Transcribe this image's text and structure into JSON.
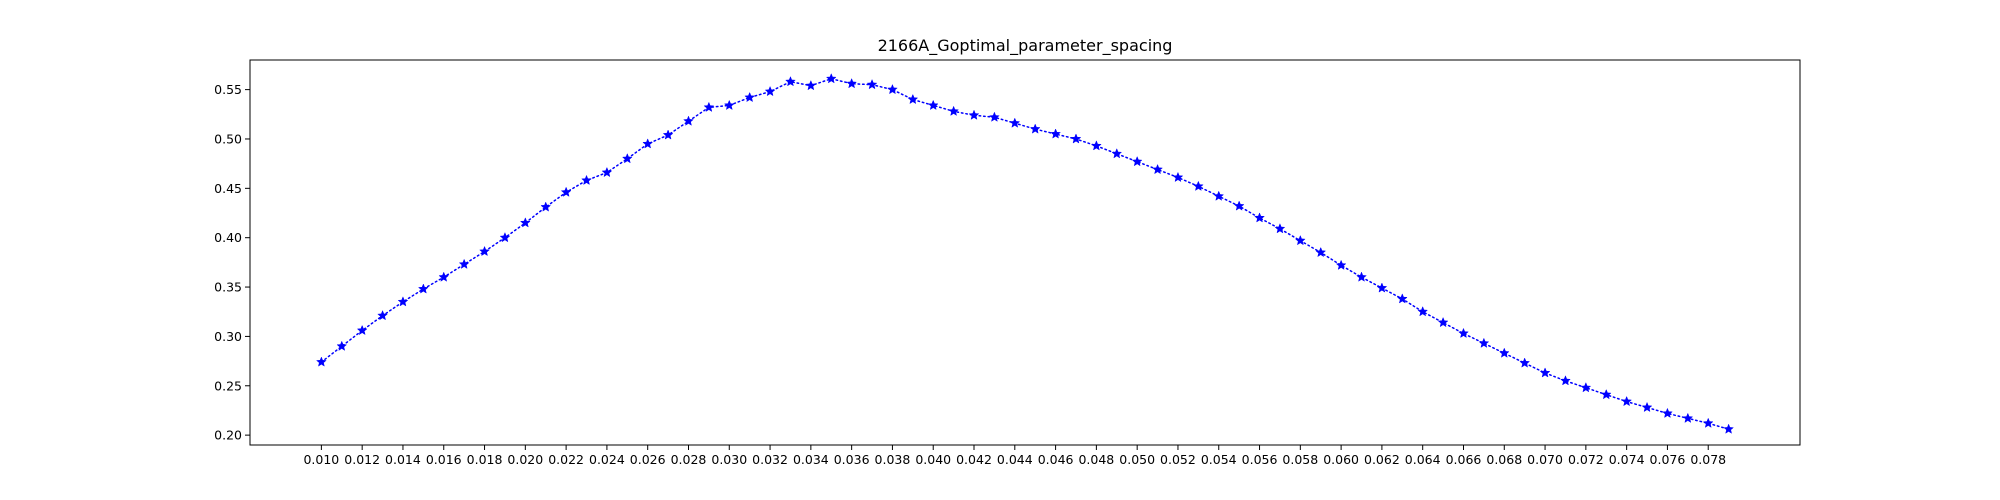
{
  "chart_data": {
    "type": "line",
    "title": "2166A_Goptimal_parameter_spacing",
    "xlabel": "",
    "ylabel": "",
    "xlim": [
      0.0065,
      0.0825
    ],
    "ylim": [
      0.19,
      0.58
    ],
    "grid": false,
    "line_style": "dotted",
    "marker": "star",
    "color": "#0000ff",
    "x_ticks": [
      0.01,
      0.012,
      0.014,
      0.016,
      0.018,
      0.02,
      0.022,
      0.024,
      0.026,
      0.028,
      0.03,
      0.032,
      0.034,
      0.036,
      0.038,
      0.04,
      0.042,
      0.044,
      0.046,
      0.048,
      0.05,
      0.052,
      0.054,
      0.056,
      0.058,
      0.06,
      0.062,
      0.064,
      0.066,
      0.068,
      0.07,
      0.072,
      0.074,
      0.076,
      0.078
    ],
    "x_tick_labels": [
      "0.010",
      "0.012",
      "0.014",
      "0.016",
      "0.018",
      "0.020",
      "0.022",
      "0.024",
      "0.026",
      "0.028",
      "0.030",
      "0.032",
      "0.034",
      "0.036",
      "0.038",
      "0.040",
      "0.042",
      "0.044",
      "0.046",
      "0.048",
      "0.050",
      "0.052",
      "0.054",
      "0.056",
      "0.058",
      "0.060",
      "0.062",
      "0.064",
      "0.066",
      "0.068",
      "0.070",
      "0.072",
      "0.074",
      "0.076",
      "0.078"
    ],
    "y_ticks": [
      0.2,
      0.25,
      0.3,
      0.35,
      0.4,
      0.45,
      0.5,
      0.55
    ],
    "y_tick_labels": [
      "0.20",
      "0.25",
      "0.30",
      "0.35",
      "0.40",
      "0.45",
      "0.50",
      "0.55"
    ],
    "series": [
      {
        "x": [
          0.01,
          0.011,
          0.012,
          0.013,
          0.014,
          0.015,
          0.016,
          0.017,
          0.018,
          0.019,
          0.02,
          0.021,
          0.022,
          0.023,
          0.024,
          0.025,
          0.026,
          0.027,
          0.028,
          0.029,
          0.03,
          0.031,
          0.032,
          0.033,
          0.034,
          0.035,
          0.036,
          0.037,
          0.038,
          0.039,
          0.04,
          0.041,
          0.042,
          0.043,
          0.044,
          0.045,
          0.046,
          0.047,
          0.048,
          0.049,
          0.05,
          0.051,
          0.052,
          0.053,
          0.054,
          0.055,
          0.056,
          0.057,
          0.058,
          0.059,
          0.06,
          0.061,
          0.062,
          0.063,
          0.064,
          0.065,
          0.066,
          0.067,
          0.068,
          0.069,
          0.07,
          0.071,
          0.072,
          0.073,
          0.074,
          0.075,
          0.076,
          0.077,
          0.078,
          0.079
        ],
        "values": [
          0.274,
          0.29,
          0.306,
          0.321,
          0.335,
          0.348,
          0.36,
          0.373,
          0.386,
          0.4,
          0.415,
          0.431,
          0.446,
          0.458,
          0.466,
          0.48,
          0.495,
          0.504,
          0.518,
          0.532,
          0.534,
          0.542,
          0.548,
          0.558,
          0.554,
          0.561,
          0.556,
          0.555,
          0.55,
          0.54,
          0.534,
          0.528,
          0.524,
          0.522,
          0.516,
          0.51,
          0.505,
          0.5,
          0.493,
          0.485,
          0.477,
          0.469,
          0.461,
          0.452,
          0.442,
          0.432,
          0.42,
          0.409,
          0.397,
          0.385,
          0.372,
          0.36,
          0.349,
          0.338,
          0.325,
          0.314,
          0.303,
          0.293,
          0.283,
          0.273,
          0.263,
          0.255,
          0.248,
          0.241,
          0.234,
          0.228,
          0.222,
          0.217,
          0.212,
          0.206
        ]
      }
    ]
  }
}
